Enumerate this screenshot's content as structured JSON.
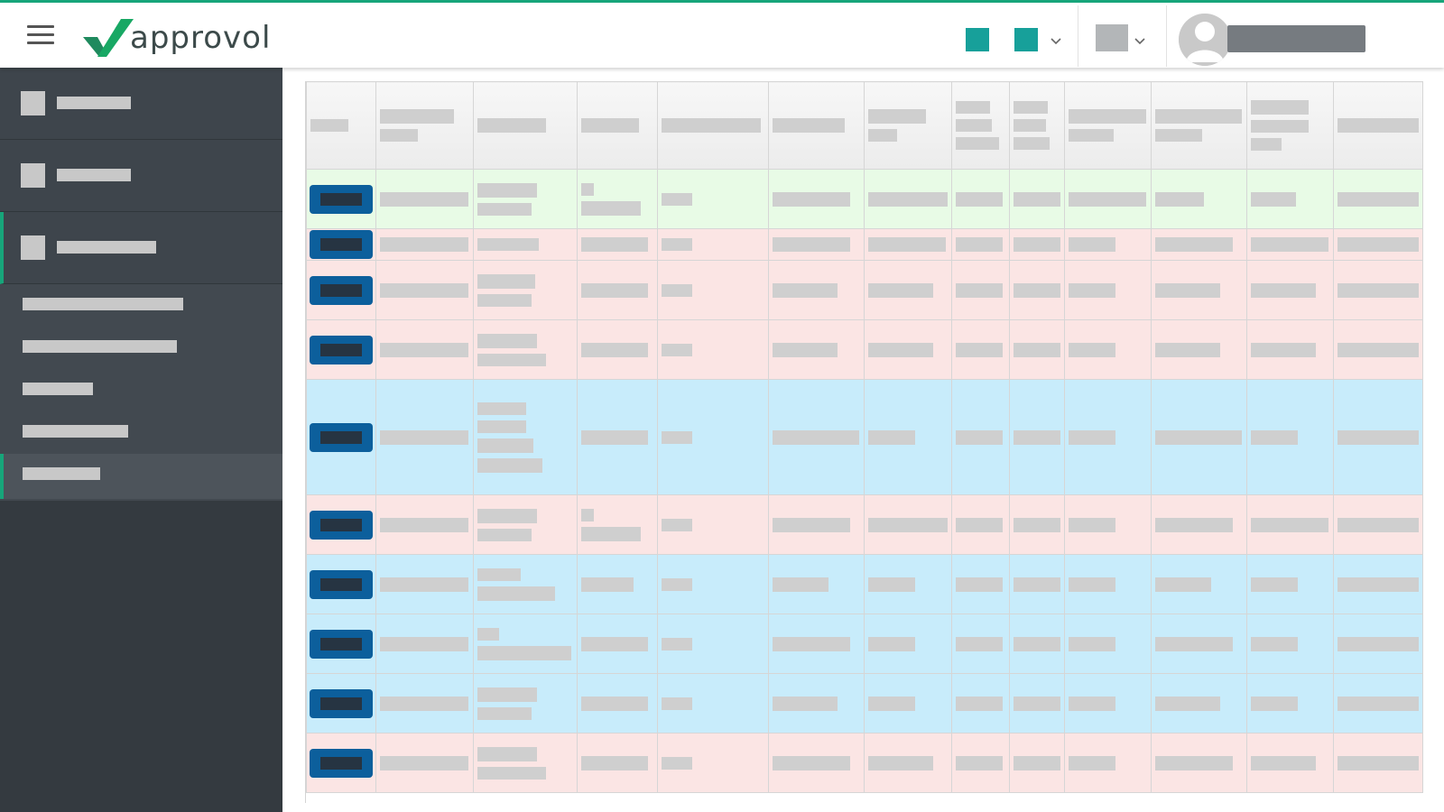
{
  "app": {
    "logo_text": "approvol",
    "colors": {
      "accent": "#17a57a",
      "header_icon": "#17a09a",
      "button": "#0c5f9c",
      "row_green": "#e8fbe6",
      "row_pink": "#fbe5e4",
      "row_blue": "#c8ecfb"
    }
  },
  "header": {
    "menu_icon": "hamburger-icon",
    "widgets": [
      "notification-icon",
      "company-icon",
      "language-icon"
    ],
    "user_name": ""
  },
  "sidebar": {
    "items": [
      {
        "label": "",
        "icon": "nav-icon"
      },
      {
        "label": "",
        "icon": "nav-icon"
      },
      {
        "label": "",
        "icon": "nav-icon",
        "active": true
      }
    ],
    "submenu": [
      {
        "label": ""
      },
      {
        "label": ""
      },
      {
        "label": ""
      },
      {
        "label": ""
      },
      {
        "label": "",
        "active": true
      }
    ]
  },
  "table": {
    "row_states": [
      "green",
      "pink",
      "pink",
      "pink",
      "blue",
      "pink",
      "blue",
      "blue",
      "blue",
      "pink"
    ],
    "cell_values_redacted": true
  }
}
